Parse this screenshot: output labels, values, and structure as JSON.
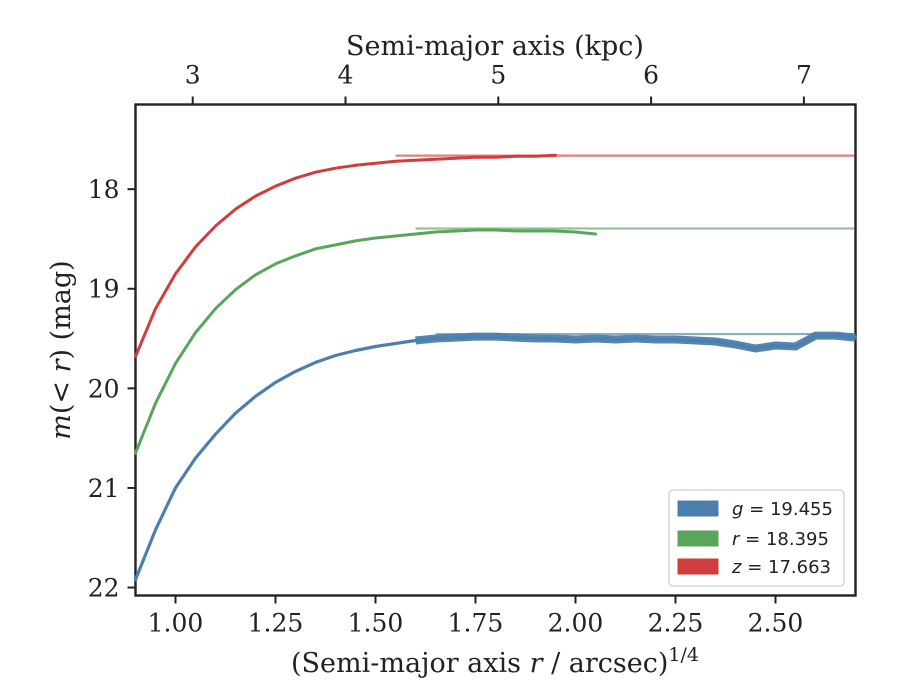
{
  "chart_data": {
    "type": "line",
    "title": "",
    "top_xlabel": "Semi-major axis (kpc)",
    "ylabel": {
      "pre": "m",
      "mid": "(< ",
      "var": "r",
      "post": ") (mag)"
    },
    "xlabel": {
      "pre": "(Semi-major axis ",
      "var": "r",
      "post": " / arcsec)",
      "sup": "1/4"
    },
    "xlim": [
      0.9,
      2.7
    ],
    "ylim": [
      22.08,
      17.15
    ],
    "y_inverted": true,
    "xticks": [
      1.0,
      1.25,
      1.5,
      1.75,
      2.0,
      2.25,
      2.5
    ],
    "xtick_labels": [
      "1.00",
      "1.25",
      "1.50",
      "1.75",
      "2.00",
      "2.25",
      "2.50"
    ],
    "yticks": [
      18,
      19,
      20,
      21,
      22
    ],
    "ytick_labels": [
      "18",
      "19",
      "20",
      "21",
      "22"
    ],
    "top_xticks": [
      {
        "kpc": 3,
        "x": 1.043,
        "label": "3"
      },
      {
        "kpc": 4,
        "x": 1.425,
        "label": "4"
      },
      {
        "kpc": 5,
        "x": 1.807,
        "label": "5"
      },
      {
        "kpc": 6,
        "x": 2.189,
        "label": "6"
      },
      {
        "kpc": 7,
        "x": 2.571,
        "label": "7"
      }
    ],
    "grid": false,
    "legend_position": "lower-right",
    "series": [
      {
        "name": "g = 19.455",
        "legend_var": "g",
        "legend_value": "= 19.455",
        "color": "#4c7fad",
        "asymptote": 19.455,
        "x": [
          0.9,
          0.95,
          1.0,
          1.05,
          1.1,
          1.15,
          1.2,
          1.25,
          1.3,
          1.35,
          1.4,
          1.45,
          1.5,
          1.55,
          1.6,
          1.65,
          1.7,
          1.75,
          1.8,
          1.85,
          1.9,
          1.95,
          2.0,
          2.05,
          2.1,
          2.15,
          2.2,
          2.25,
          2.3,
          2.35,
          2.4,
          2.45,
          2.5,
          2.55,
          2.6,
          2.65,
          2.7
        ],
        "y": [
          21.92,
          21.42,
          21.0,
          20.7,
          20.46,
          20.25,
          20.08,
          19.94,
          19.83,
          19.74,
          19.67,
          19.62,
          19.58,
          19.55,
          19.52,
          19.5,
          19.49,
          19.48,
          19.48,
          19.49,
          19.5,
          19.5,
          19.51,
          19.5,
          19.51,
          19.5,
          19.51,
          19.51,
          19.52,
          19.53,
          19.56,
          19.6,
          19.57,
          19.58,
          19.47,
          19.47,
          19.49
        ]
      },
      {
        "name": "r = 18.395",
        "legend_var": "r",
        "legend_value": "= 18.395",
        "color": "#5aa55c",
        "asymptote": 18.395,
        "x": [
          0.9,
          0.95,
          1.0,
          1.05,
          1.1,
          1.15,
          1.2,
          1.25,
          1.3,
          1.35,
          1.4,
          1.45,
          1.5,
          1.55,
          1.6,
          1.65,
          1.7,
          1.75,
          1.8,
          1.85,
          1.9,
          1.95,
          2.0,
          2.05
        ],
        "y": [
          20.65,
          20.15,
          19.75,
          19.44,
          19.2,
          19.01,
          18.86,
          18.75,
          18.67,
          18.6,
          18.56,
          18.52,
          18.49,
          18.47,
          18.45,
          18.43,
          18.42,
          18.41,
          18.41,
          18.42,
          18.42,
          18.42,
          18.43,
          18.45
        ]
      },
      {
        "name": "z = 17.663",
        "legend_var": "z",
        "legend_value": "= 17.663",
        "color": "#d13c3c",
        "asymptote": 17.663,
        "x": [
          0.9,
          0.95,
          1.0,
          1.05,
          1.1,
          1.15,
          1.2,
          1.25,
          1.3,
          1.35,
          1.4,
          1.45,
          1.5,
          1.55,
          1.6,
          1.65,
          1.7,
          1.75,
          1.8,
          1.85,
          1.9,
          1.95
        ],
        "y": [
          19.68,
          19.2,
          18.85,
          18.58,
          18.37,
          18.2,
          18.07,
          17.97,
          17.89,
          17.83,
          17.79,
          17.76,
          17.74,
          17.72,
          17.71,
          17.7,
          17.69,
          17.68,
          17.68,
          17.67,
          17.67,
          17.66
        ]
      }
    ]
  }
}
